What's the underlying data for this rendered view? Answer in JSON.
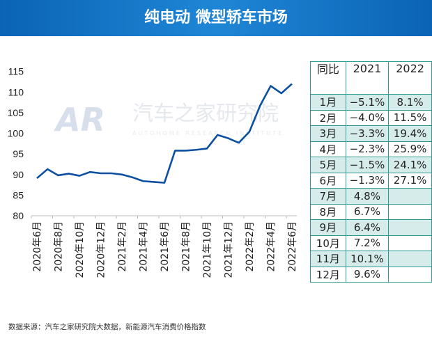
{
  "title": "纯电动 微型轿车市场",
  "watermark": {
    "logo": "AR",
    "name": "汽车之家研究院",
    "subtitle": "AUTOHOME RESEARCH INSTITUTE"
  },
  "chart_data": {
    "type": "line",
    "x": [
      "2020年6月",
      "2020年7月",
      "2020年8月",
      "2020年9月",
      "2020年10月",
      "2020年11月",
      "2020年12月",
      "2021年1月",
      "2021年2月",
      "2021年3月",
      "2021年4月",
      "2021年5月",
      "2021年6月",
      "2021年7月",
      "2021年8月",
      "2021年9月",
      "2021年10月",
      "2021年11月",
      "2021年12月",
      "2022年1月",
      "2022年2月",
      "2022年3月",
      "2022年4月",
      "2022年5月",
      "2022年6月"
    ],
    "tick_labels": [
      "2020年6月",
      "2020年8月",
      "2020年10月",
      "2020年12月",
      "2021年2月",
      "2021年4月",
      "2021年6月",
      "2021年8月",
      "2021年10月",
      "2021年12月",
      "2022年2月",
      "2022年4月",
      "2022年6月"
    ],
    "values": [
      89.1,
      91.3,
      89.8,
      90.2,
      89.7,
      90.6,
      90.3,
      90.3,
      90.0,
      89.3,
      88.4,
      88.2,
      88.0,
      95.8,
      95.8,
      96.0,
      96.3,
      99.6,
      98.8,
      97.7,
      100.4,
      106.7,
      111.5,
      109.7,
      112.0
    ],
    "ylim": [
      80,
      115
    ],
    "yticks": [
      80,
      85,
      90,
      95,
      100,
      105,
      110,
      115
    ],
    "color": "#0d4fa0",
    "grid": false
  },
  "table": {
    "header": [
      "同比",
      "2021",
      "2022"
    ],
    "rows": [
      [
        "1月",
        "−5.1%",
        "8.1%"
      ],
      [
        "2月",
        "−4.0%",
        "11.5%"
      ],
      [
        "3月",
        "−3.3%",
        "19.4%"
      ],
      [
        "4月",
        "−2.3%",
        "25.9%"
      ],
      [
        "5月",
        "−1.5%",
        "24.1%"
      ],
      [
        "6月",
        "−1.3%",
        "27.1%"
      ],
      [
        "7月",
        "4.8%",
        ""
      ],
      [
        "8月",
        "6.7%",
        ""
      ],
      [
        "9月",
        "6.4%",
        ""
      ],
      [
        "10月",
        "7.2%",
        ""
      ],
      [
        "11月",
        "10.1%",
        ""
      ],
      [
        "12月",
        "9.6%",
        ""
      ]
    ]
  },
  "footer": "数据来源：汽车之家研究院大数据，新能源汽车消费价格指数"
}
